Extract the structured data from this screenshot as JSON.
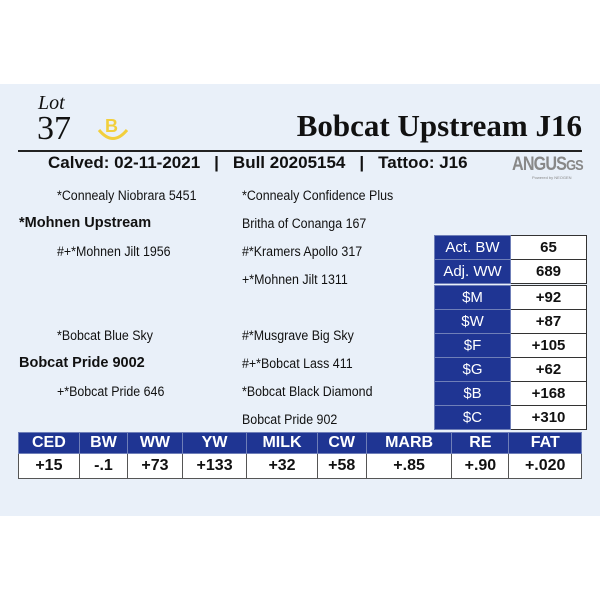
{
  "lot": {
    "word": "Lot",
    "number": "37"
  },
  "title": "Bobcat Upstream J16",
  "info": {
    "calved": "Calved: 02-11-2021",
    "sep": "|",
    "bull": "Bull 20205154",
    "tattoo": "Tattoo: J16"
  },
  "brand": {
    "name": "ANGUS",
    "suffix": "GS",
    "tagline": "Powered by NEOGEN",
    "logo_color": "#f2cf3c"
  },
  "pedigree": {
    "sire_sire": "*Connealy Niobrara 5451",
    "sire": "*Mohnen Upstream",
    "sire_dam": "#+*Mohnen Jilt 1956",
    "ssd_sire": "*Connealy Confidence Plus",
    "ssd_dam": "Britha of Conanga 167",
    "sd_sire": "#*Kramers Apollo 317",
    "sd_dam": "+*Mohnen Jilt 1311",
    "dam_sire": "*Bobcat Blue Sky",
    "dam": "Bobcat Pride  9002",
    "dam_dam": "+*Bobcat Pride 646",
    "ds_sire": "#*Musgrave Big Sky",
    "ds_dam": "#+*Bobcat Lass 411",
    "dd_sire": "*Bobcat Black Diamond",
    "dd_dam": "Bobcat Pride 902"
  },
  "weights": [
    {
      "label": "Act. BW",
      "value": "65"
    },
    {
      "label": "Adj. WW",
      "value": "689"
    }
  ],
  "indexes": [
    {
      "label": "$M",
      "value": "+92"
    },
    {
      "label": "$W",
      "value": "+87"
    },
    {
      "label": "$F",
      "value": "+105"
    },
    {
      "label": "$G",
      "value": "+62"
    },
    {
      "label": "$B",
      "value": "+168"
    },
    {
      "label": "$C",
      "value": "+310"
    }
  ],
  "epds": {
    "headers": [
      "CED",
      "BW",
      "WW",
      "YW",
      "MILK",
      "CW",
      "MARB",
      "RE",
      "FAT"
    ],
    "values": [
      "+15",
      "-.1",
      "+73",
      "+133",
      "+32",
      "+58",
      "+.85",
      "+.90",
      "+.020"
    ]
  },
  "colors": {
    "accent": "#1f3593",
    "background": "#e9f0f9"
  }
}
